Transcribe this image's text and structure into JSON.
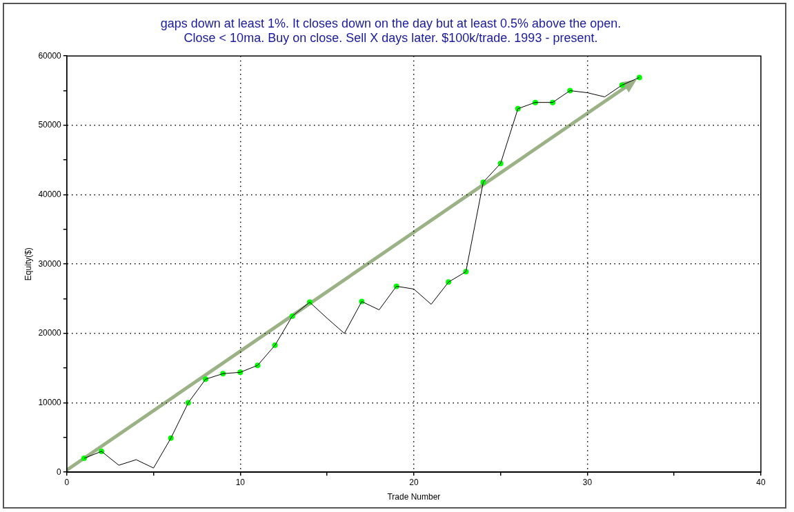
{
  "chart_data": {
    "type": "line",
    "title": "gaps down at least 1%. It closes down on the day but at least 0.5% above the open.\nClose < 10ma. Buy on close. Sell X days later. $100k/trade. 1993 - present.",
    "xlabel": "Trade Number",
    "ylabel": "Equity($)",
    "x": [
      1,
      2,
      3,
      4,
      5,
      6,
      7,
      8,
      9,
      10,
      11,
      12,
      13,
      14,
      15,
      16,
      17,
      18,
      19,
      20,
      21,
      22,
      23,
      24,
      25,
      26,
      27,
      28,
      29,
      30,
      31,
      32,
      33
    ],
    "series": [
      {
        "color": "#000000",
        "marker": "none",
        "values": [
          2000,
          3000,
          1000,
          1800,
          600,
          4900,
          10000,
          13400,
          14200,
          14400,
          15400,
          18300,
          22500,
          24500,
          22200,
          20000,
          24600,
          23400,
          26800,
          26400,
          24200,
          27400,
          28900,
          41800,
          44500,
          52400,
          53300,
          53300,
          55000,
          54700,
          54100,
          55800,
          56900
        ]
      },
      {
        "type": "scatter",
        "color": "#00ff00",
        "marker": "circle",
        "values": [
          2000,
          3000,
          null,
          null,
          null,
          4900,
          10000,
          13400,
          14200,
          14400,
          15400,
          18300,
          22500,
          24500,
          null,
          null,
          24600,
          null,
          26800,
          null,
          null,
          27400,
          28900,
          41800,
          44500,
          52400,
          53300,
          53300,
          55000,
          null,
          null,
          55800,
          56900
        ]
      }
    ],
    "xlim": [
      0,
      40
    ],
    "xticks": [
      0,
      {
        "value": 5,
        "label": null
      },
      10,
      {
        "value": 15,
        "label": null
      },
      20,
      {
        "value": 25,
        "label": null
      },
      30,
      {
        "value": 35,
        "label": null
      },
      40
    ],
    "ylim": [
      0,
      60000
    ],
    "yticks": [
      0,
      {
        "value": 5000,
        "label": null
      },
      10000,
      {
        "value": 15000,
        "label": null
      },
      20000,
      {
        "value": 25000,
        "label": null
      },
      30000,
      {
        "value": 35000,
        "label": null
      },
      40000,
      {
        "value": 45000,
        "label": null
      },
      50000,
      {
        "value": 55000,
        "label": null
      },
      60000
    ],
    "grid": true,
    "legend": false
  }
}
